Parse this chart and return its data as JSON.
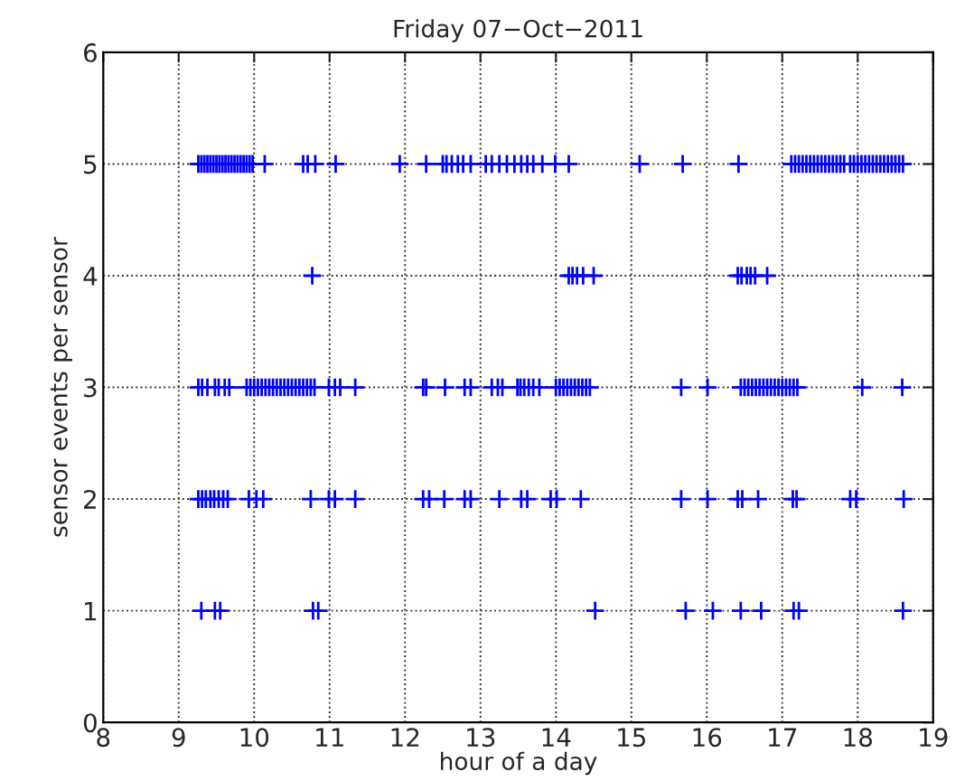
{
  "chart_data": {
    "type": "scatter",
    "title": "Friday 07−Oct−2011",
    "xlabel": "hour of a day",
    "ylabel": "sensor events per sensor",
    "xlim": [
      8,
      19
    ],
    "xticks": [
      8,
      9,
      10,
      11,
      12,
      13,
      14,
      15,
      16,
      17,
      18,
      19
    ],
    "ylim": [
      0,
      6
    ],
    "yticks": [
      0,
      1,
      2,
      3,
      4,
      5,
      6
    ],
    "grid": true,
    "marker": "cross",
    "line_style": "dotted",
    "series": [
      {
        "color": "#0000ff",
        "x": [
          9.3,
          9.48,
          9.55,
          10.78,
          10.85,
          14.52,
          15.72,
          16.08,
          16.45,
          16.72,
          17.15,
          17.22,
          18.6
        ],
        "values": [
          1,
          1,
          1,
          1,
          1,
          1,
          1,
          1,
          1,
          1,
          1,
          1,
          1
        ]
      },
      {
        "color": "#0000ff",
        "x": [
          9.26,
          9.31,
          9.36,
          9.42,
          9.47,
          9.53,
          9.59,
          9.65,
          9.93,
          10.03,
          10.12,
          10.75,
          10.99,
          11.07,
          11.34,
          12.24,
          12.32,
          12.52,
          12.79,
          12.87,
          13.25,
          13.54,
          13.62,
          13.93,
          14.01,
          14.33,
          15.66,
          16.01,
          16.41,
          16.47,
          16.68,
          17.14,
          17.19,
          17.9,
          17.98,
          18.61
        ],
        "values": [
          2,
          2,
          2,
          2,
          2,
          2,
          2,
          2,
          2,
          2,
          2,
          2,
          2,
          2,
          2,
          2,
          2,
          2,
          2,
          2,
          2,
          2,
          2,
          2,
          2,
          2,
          2,
          2,
          2,
          2,
          2,
          2,
          2,
          2,
          2,
          2
        ]
      },
      {
        "color": "#0000ff",
        "x": [
          9.26,
          9.31,
          9.38,
          9.48,
          9.53,
          9.61,
          9.67,
          9.9,
          9.95,
          10.0,
          10.05,
          10.1,
          10.15,
          10.2,
          10.25,
          10.3,
          10.35,
          10.4,
          10.45,
          10.5,
          10.55,
          10.6,
          10.65,
          10.7,
          10.75,
          10.8,
          10.99,
          11.07,
          11.14,
          11.34,
          12.24,
          12.28,
          12.53,
          12.79,
          12.87,
          13.15,
          13.23,
          13.29,
          13.49,
          13.53,
          13.58,
          13.64,
          13.7,
          13.78,
          14.0,
          14.05,
          14.1,
          14.15,
          14.2,
          14.25,
          14.3,
          14.35,
          14.4,
          14.45,
          15.66,
          16.01,
          16.45,
          16.5,
          16.55,
          16.6,
          16.65,
          16.7,
          16.75,
          16.8,
          16.85,
          16.9,
          16.95,
          17.0,
          17.05,
          17.1,
          17.15,
          17.2,
          18.06,
          18.59
        ],
        "values": [
          3,
          3,
          3,
          3,
          3,
          3,
          3,
          3,
          3,
          3,
          3,
          3,
          3,
          3,
          3,
          3,
          3,
          3,
          3,
          3,
          3,
          3,
          3,
          3,
          3,
          3,
          3,
          3,
          3,
          3,
          3,
          3,
          3,
          3,
          3,
          3,
          3,
          3,
          3,
          3,
          3,
          3,
          3,
          3,
          3,
          3,
          3,
          3,
          3,
          3,
          3,
          3,
          3,
          3,
          3,
          3,
          3,
          3,
          3,
          3,
          3,
          3,
          3,
          3,
          3,
          3,
          3,
          3,
          3,
          3,
          3,
          3,
          3,
          3
        ]
      },
      {
        "color": "#0000ff",
        "x": [
          10.77,
          14.17,
          14.22,
          14.28,
          14.36,
          14.5,
          16.41,
          16.46,
          16.53,
          16.58,
          16.64,
          16.8
        ],
        "values": [
          4,
          4,
          4,
          4,
          4,
          4,
          4,
          4,
          4,
          4,
          4,
          4
        ]
      },
      {
        "color": "#0000ff",
        "x": [
          9.26,
          9.3,
          9.34,
          9.38,
          9.42,
          9.46,
          9.5,
          9.54,
          9.58,
          9.62,
          9.66,
          9.7,
          9.74,
          9.78,
          9.82,
          9.86,
          9.9,
          9.94,
          9.98,
          10.14,
          10.65,
          10.71,
          10.81,
          11.08,
          11.93,
          12.28,
          12.5,
          12.55,
          12.62,
          12.7,
          12.77,
          12.87,
          13.07,
          13.15,
          13.25,
          13.35,
          13.45,
          13.54,
          13.62,
          13.7,
          13.82,
          13.99,
          14.17,
          15.11,
          15.68,
          16.42,
          17.12,
          17.17,
          17.22,
          17.27,
          17.32,
          17.37,
          17.42,
          17.47,
          17.52,
          17.57,
          17.62,
          17.67,
          17.72,
          17.77,
          17.82,
          17.9,
          17.95,
          18.0,
          18.05,
          18.1,
          18.15,
          18.2,
          18.25,
          18.3,
          18.35,
          18.4,
          18.45,
          18.5,
          18.55,
          18.6
        ],
        "values": [
          5,
          5,
          5,
          5,
          5,
          5,
          5,
          5,
          5,
          5,
          5,
          5,
          5,
          5,
          5,
          5,
          5,
          5,
          5,
          5,
          5,
          5,
          5,
          5,
          5,
          5,
          5,
          5,
          5,
          5,
          5,
          5,
          5,
          5,
          5,
          5,
          5,
          5,
          5,
          5,
          5,
          5,
          5,
          5,
          5,
          5,
          5,
          5,
          5,
          5,
          5,
          5,
          5,
          5,
          5,
          5,
          5,
          5,
          5,
          5,
          5,
          5,
          5,
          5,
          5,
          5,
          5,
          5,
          5,
          5,
          5,
          5,
          5,
          5,
          5,
          5
        ]
      }
    ]
  }
}
